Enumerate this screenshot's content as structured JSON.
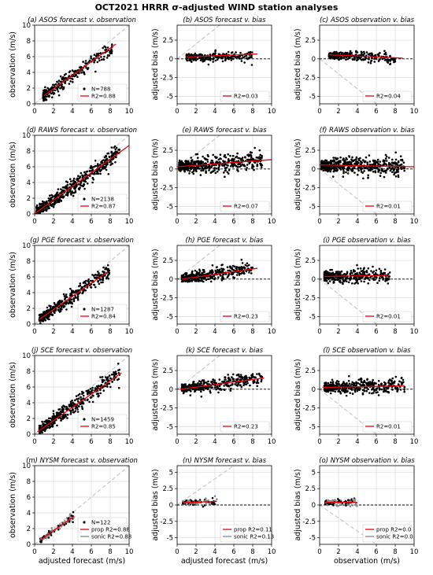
{
  "figure_title": "OCT2021 HRRR σ-adjusted WIND station analyses",
  "colors": {
    "points": "#000000",
    "points_sonic": "#888888",
    "fit": "#e8000b",
    "ref": "#c8c8c8",
    "zero": "#000000",
    "grid": "#d9d9d9"
  },
  "chart_data": [
    {
      "id": "a",
      "type": "scatter",
      "title": "(a) ASOS forecast v. observation",
      "xlabel": "",
      "ylabel": "observation (m/s)",
      "xlim": [
        0,
        10
      ],
      "ylim": [
        0,
        10
      ],
      "xticks": [
        0,
        2,
        4,
        6,
        8,
        10
      ],
      "yticks": [
        0,
        2,
        4,
        6,
        8,
        10
      ],
      "ref": "identity",
      "grid": true,
      "legend": [
        {
          "kind": "marker",
          "label": "N=788"
        },
        {
          "kind": "line",
          "color": "#e8000b",
          "label": "R2=0.88"
        }
      ],
      "cloud": {
        "n": 260,
        "xmin": 0.9,
        "xmax": 8.2,
        "xmode": 2.5,
        "slope": 0.85,
        "intercept": 0.2,
        "spread": 0.45
      },
      "fit": {
        "x": [
          1,
          8.6
        ],
        "y": [
          1.05,
          7.6
        ]
      }
    },
    {
      "id": "b",
      "type": "scatter",
      "title": "(b) ASOS forecast v. bias",
      "xlabel": "",
      "ylabel": "adjusted bias (m/s)",
      "xlim": [
        0,
        10
      ],
      "ylim": [
        -6,
        4.5
      ],
      "xticks": [
        0,
        2,
        4,
        6,
        8,
        10
      ],
      "yticks": [
        -5,
        -2.5,
        0,
        2.5
      ],
      "ref": "identity",
      "grid": true,
      "legend": [
        {
          "kind": "line",
          "color": "#e8000b",
          "label": "R2=0.03"
        }
      ],
      "cloud": {
        "n": 260,
        "xmin": 1,
        "xmax": 8,
        "xmode": 3,
        "slope": 0.03,
        "intercept": 0.2,
        "spread": 0.35
      },
      "fit": {
        "x": [
          1,
          8.5
        ],
        "y": [
          0.25,
          0.65
        ]
      }
    },
    {
      "id": "c",
      "type": "scatter",
      "title": "(c) ASOS observation v. bias",
      "xlabel": "",
      "ylabel": "adjusted bias (m/s)",
      "xlim": [
        0,
        10
      ],
      "ylim": [
        -6,
        4.5
      ],
      "xticks": [
        0,
        2,
        4,
        6,
        8,
        10
      ],
      "yticks": [
        -5,
        -2.5,
        0,
        2.5
      ],
      "ref": "negidentity",
      "grid": true,
      "legend": [
        {
          "kind": "line",
          "color": "#e8000b",
          "label": "R2=0.04"
        }
      ],
      "cloud": {
        "n": 260,
        "xmin": 1,
        "xmax": 8,
        "xmode": 3,
        "slope": -0.06,
        "intercept": 0.55,
        "spread": 0.35
      },
      "fit": {
        "x": [
          1,
          8.8
        ],
        "y": [
          0.55,
          0.1
        ]
      }
    },
    {
      "id": "d",
      "type": "scatter",
      "title": "(d) RAWS forecast v. observation",
      "xlabel": "",
      "ylabel": "observation (m/s)",
      "xlim": [
        0,
        10
      ],
      "ylim": [
        0,
        10
      ],
      "xticks": [
        0,
        2,
        4,
        6,
        8,
        10
      ],
      "yticks": [
        0,
        2,
        4,
        6,
        8,
        10
      ],
      "ref": "identity",
      "grid": true,
      "legend": [
        {
          "kind": "marker",
          "label": "N=2138"
        },
        {
          "kind": "line",
          "color": "#e8000b",
          "label": "R2=0.87"
        }
      ],
      "cloud": {
        "n": 500,
        "xmin": 0.2,
        "xmax": 9,
        "xmode": 2,
        "slope": 0.85,
        "intercept": 0.1,
        "spread": 0.55
      },
      "fit": {
        "x": [
          0,
          10
        ],
        "y": [
          0.05,
          8.7
        ]
      }
    },
    {
      "id": "e",
      "type": "scatter",
      "title": "(e) RAWS forecast v. bias",
      "xlabel": "",
      "ylabel": "adjusted bias (m/s)",
      "xlim": [
        0,
        10
      ],
      "ylim": [
        -6,
        4.5
      ],
      "xticks": [
        0,
        2,
        4,
        6,
        8,
        10
      ],
      "yticks": [
        -5,
        -2.5,
        0,
        2.5
      ],
      "ref": "identity",
      "grid": true,
      "legend": [
        {
          "kind": "line",
          "color": "#e8000b",
          "label": "R2=0.07"
        }
      ],
      "cloud": {
        "n": 500,
        "xmin": 0.2,
        "xmax": 9,
        "xmode": 2.5,
        "slope": 0.1,
        "intercept": 0.3,
        "spread": 0.55
      },
      "fit": {
        "x": [
          0,
          10
        ],
        "y": [
          0.3,
          1.25
        ]
      }
    },
    {
      "id": "f",
      "type": "scatter",
      "title": "(f) RAWS observation v. bias",
      "xlabel": "",
      "ylabel": "adjusted bias (m/s)",
      "xlim": [
        0,
        10
      ],
      "ylim": [
        -6,
        4.5
      ],
      "xticks": [
        0,
        2,
        4,
        6,
        8,
        10
      ],
      "yticks": [
        -5,
        -2.5,
        0,
        2.5
      ],
      "ref": "negidentity",
      "grid": true,
      "legend": [
        {
          "kind": "line",
          "color": "#e8000b",
          "label": "R2=0.01"
        }
      ],
      "cloud": {
        "n": 500,
        "xmin": 0.2,
        "xmax": 9,
        "xmode": 2.5,
        "slope": -0.03,
        "intercept": 0.55,
        "spread": 0.6
      },
      "fit": {
        "x": [
          0,
          10
        ],
        "y": [
          0.55,
          0.3
        ]
      }
    },
    {
      "id": "g",
      "type": "scatter",
      "title": "(g) PGE forecast v. observation",
      "xlabel": "",
      "ylabel": "observation (m/s)",
      "xlim": [
        0,
        10
      ],
      "ylim": [
        0,
        10
      ],
      "xticks": [
        0,
        2,
        4,
        6,
        8,
        10
      ],
      "yticks": [
        0,
        2,
        4,
        6,
        8,
        10
      ],
      "ref": "identity",
      "grid": true,
      "legend": [
        {
          "kind": "marker",
          "label": "N=1287"
        },
        {
          "kind": "line",
          "color": "#e8000b",
          "label": "R2=0.84"
        }
      ],
      "cloud": {
        "n": 380,
        "xmin": 0.5,
        "xmax": 8,
        "xmode": 2.5,
        "slope": 0.84,
        "intercept": 0.15,
        "spread": 0.5
      },
      "fit": {
        "x": [
          0.5,
          7.8
        ],
        "y": [
          0.6,
          6.7
        ]
      }
    },
    {
      "id": "h",
      "type": "scatter",
      "title": "(h) PGE forecast v. bias",
      "xlabel": "",
      "ylabel": "adjusted bias (m/s)",
      "xlim": [
        0,
        10
      ],
      "ylim": [
        -6,
        4.5
      ],
      "xticks": [
        0,
        2,
        4,
        6,
        8,
        10
      ],
      "yticks": [
        -5,
        -2.5,
        0,
        2.5
      ],
      "ref": "identity",
      "grid": true,
      "legend": [
        {
          "kind": "line",
          "color": "#e8000b",
          "label": "R2=0.23"
        }
      ],
      "cloud": {
        "n": 380,
        "xmin": 0.5,
        "xmax": 8,
        "xmode": 2.5,
        "slope": 0.18,
        "intercept": 0.0,
        "spread": 0.45
      },
      "fit": {
        "x": [
          0.5,
          8.5
        ],
        "y": [
          0.0,
          1.45
        ]
      }
    },
    {
      "id": "i",
      "type": "scatter",
      "title": "(i) PGE observation v. bias",
      "xlabel": "",
      "ylabel": "adjusted bias (m/s)",
      "xlim": [
        0,
        10
      ],
      "ylim": [
        -6,
        4.5
      ],
      "xticks": [
        0,
        2,
        4,
        6,
        8,
        10
      ],
      "yticks": [
        -5,
        -2.5,
        0,
        2.5
      ],
      "ref": "negidentity",
      "grid": true,
      "legend": [
        {
          "kind": "line",
          "color": "#e8000b",
          "label": "R2=0.01"
        }
      ],
      "cloud": {
        "n": 380,
        "xmin": 0.5,
        "xmax": 7.5,
        "xmode": 2.5,
        "slope": 0.02,
        "intercept": 0.35,
        "spread": 0.5
      },
      "fit": {
        "x": [
          0.5,
          7.3
        ],
        "y": [
          0.35,
          0.5
        ]
      }
    },
    {
      "id": "j",
      "type": "scatter",
      "title": "(j) SCE forecast v. observation",
      "xlabel": "",
      "ylabel": "observation (m/s)",
      "xlim": [
        0,
        10
      ],
      "ylim": [
        0,
        10
      ],
      "xticks": [
        0,
        2,
        4,
        6,
        8,
        10
      ],
      "yticks": [
        0,
        2,
        4,
        6,
        8,
        10
      ],
      "ref": "identity",
      "grid": true,
      "legend": [
        {
          "kind": "marker",
          "label": "N=1459"
        },
        {
          "kind": "line",
          "color": "#e8000b",
          "label": "R2=0.85"
        }
      ],
      "cloud": {
        "n": 400,
        "xmin": 0.5,
        "xmax": 9,
        "xmode": 2.5,
        "slope": 0.85,
        "intercept": 0.1,
        "spread": 0.5
      },
      "fit": {
        "x": [
          0.3,
          9.2
        ],
        "y": [
          0.3,
          7.8
        ]
      }
    },
    {
      "id": "k",
      "type": "scatter",
      "title": "(k) SCE forecast v. bias",
      "xlabel": "",
      "ylabel": "adjusted bias (m/s)",
      "xlim": [
        0,
        10
      ],
      "ylim": [
        -6,
        4.5
      ],
      "xticks": [
        0,
        2,
        4,
        6,
        8,
        10
      ],
      "yticks": [
        -5,
        -2.5,
        0,
        2.5
      ],
      "ref": "identity",
      "grid": true,
      "legend": [
        {
          "kind": "line",
          "color": "#e8000b",
          "label": "R2=0.23"
        }
      ],
      "cloud": {
        "n": 400,
        "xmin": 0.5,
        "xmax": 9,
        "xmode": 2.5,
        "slope": 0.16,
        "intercept": 0.0,
        "spread": 0.45
      },
      "fit": {
        "x": [
          0.3,
          9.2
        ],
        "y": [
          0.0,
          1.5
        ]
      }
    },
    {
      "id": "l",
      "type": "scatter",
      "title": "(l) SCE observation v. bias",
      "xlabel": "",
      "ylabel": "adjusted bias (m/s)",
      "xlim": [
        0,
        10
      ],
      "ylim": [
        -6,
        4.5
      ],
      "xticks": [
        0,
        2,
        4,
        6,
        8,
        10
      ],
      "yticks": [
        -5,
        -2.5,
        0,
        2.5
      ],
      "ref": "negidentity",
      "grid": true,
      "legend": [
        {
          "kind": "line",
          "color": "#e8000b",
          "label": "R2=0.01"
        }
      ],
      "cloud": {
        "n": 400,
        "xmin": 0.5,
        "xmax": 9,
        "xmode": 2.5,
        "slope": 0.03,
        "intercept": 0.25,
        "spread": 0.5
      },
      "fit": {
        "x": [
          0.3,
          9
        ],
        "y": [
          0.25,
          0.45
        ]
      }
    },
    {
      "id": "m",
      "type": "scatter",
      "title": "(m) NYSM forecast v. observation",
      "xlabel": "adjusted forecast (m/s)",
      "ylabel": "observation (m/s)",
      "xlim": [
        0,
        10
      ],
      "ylim": [
        0,
        10
      ],
      "xticks": [
        0,
        2,
        4,
        6,
        8,
        10
      ],
      "yticks": [
        0,
        2,
        4,
        6,
        8,
        10
      ],
      "ref": "identity",
      "grid": true,
      "legend": [
        {
          "kind": "marker",
          "label": "N=122"
        },
        {
          "kind": "line",
          "color": "#e8000b",
          "label": "prop R2=0.88"
        },
        {
          "kind": "line",
          "color": "#888888",
          "label": "sonic R2=0.88"
        }
      ],
      "cloud": {
        "n": 110,
        "xmin": 0.6,
        "xmax": 4.2,
        "xmode": 2.2,
        "slope": 0.85,
        "intercept": 0.05,
        "spread": 0.25
      },
      "fit": {
        "x": [
          0.6,
          4.2
        ],
        "y": [
          0.55,
          3.6
        ]
      }
    },
    {
      "id": "n",
      "type": "scatter",
      "title": "(n) NYSM forecast v. bias",
      "xlabel": "adjusted forecast (m/s)",
      "ylabel": "adjusted bias (m/s)",
      "xlim": [
        0,
        10
      ],
      "ylim": [
        -6,
        6
      ],
      "xticks": [
        0,
        2,
        4,
        6,
        8,
        10
      ],
      "yticks": [
        -5,
        -2.5,
        0,
        2.5,
        5
      ],
      "ref": "identity",
      "grid": true,
      "legend": [
        {
          "kind": "line",
          "color": "#e8000b",
          "label": "prop R2=0.11"
        },
        {
          "kind": "line",
          "color": "#888888",
          "label": "sonic R2=0.13"
        }
      ],
      "cloud": {
        "n": 110,
        "xmin": 0.6,
        "xmax": 4.2,
        "xmode": 2.2,
        "slope": 0.05,
        "intercept": 0.35,
        "spread": 0.3
      },
      "fit": {
        "x": [
          0.6,
          4.2
        ],
        "y": [
          0.35,
          0.55
        ]
      }
    },
    {
      "id": "o",
      "type": "scatter",
      "title": "(o) NYSM observation v. bias",
      "xlabel": "observation (m/s)",
      "ylabel": "adjusted bias (m/s)",
      "xlim": [
        0,
        10
      ],
      "ylim": [
        -6,
        6
      ],
      "xticks": [
        0,
        2,
        4,
        6,
        8,
        10
      ],
      "yticks": [
        -5,
        -2.5,
        0,
        2.5,
        5
      ],
      "ref": "negidentity",
      "grid": true,
      "legend": [
        {
          "kind": "line",
          "color": "#e8000b",
          "label": "prop R2=0.0"
        },
        {
          "kind": "line",
          "color": "#888888",
          "label": "sonic R2=0.0"
        }
      ],
      "cloud": {
        "n": 110,
        "xmin": 0.6,
        "xmax": 4,
        "xmode": 2.0,
        "slope": 0.0,
        "intercept": 0.4,
        "spread": 0.3
      },
      "fit": {
        "x": [
          0.6,
          4
        ],
        "y": [
          0.4,
          0.4
        ]
      }
    }
  ]
}
